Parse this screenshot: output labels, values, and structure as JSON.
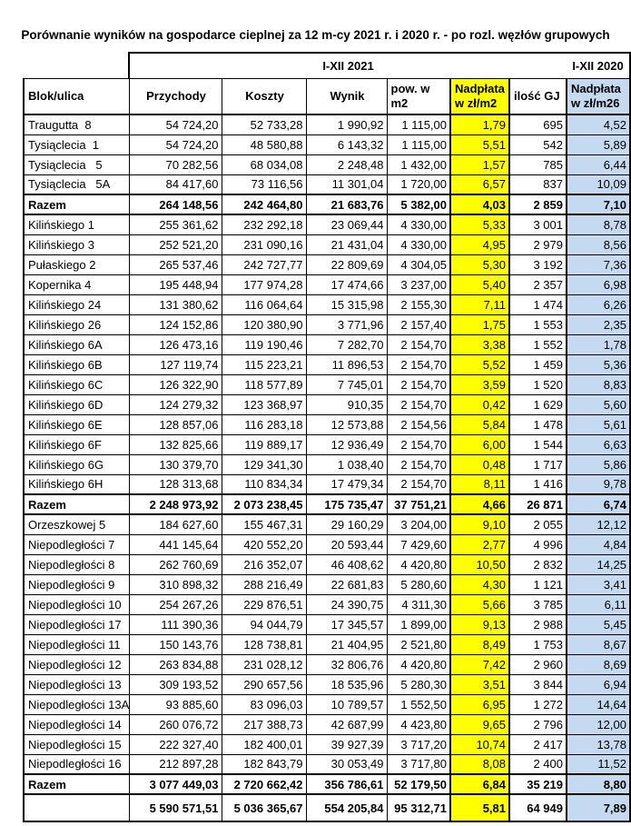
{
  "title": "Porównanie wyników na gospodarce cieplnej za 12 m-cy 2021 r. i 2020 r. - po rozl. węzłów grupowych",
  "table": {
    "period_2021_label": "I-XII 2021",
    "period_2020_label": "I-XII 2020",
    "columns": [
      "Blok/ulica",
      "Przychody",
      "Koszty",
      "Wynik",
      "pow. w m2",
      "Nadpłata w zł/m2",
      "ilość GJ",
      "Nadpłata w zł/m26"
    ],
    "colors": {
      "overpayment_2021_bg": "#FFFF00",
      "overpayment_2020_bg": "#C5D9F1"
    },
    "rows": [
      {
        "label": "Traugutta  8",
        "values": [
          "54 724,20",
          "52 733,28",
          "1 990,92",
          "1 115,00",
          "1,79",
          "695",
          "4,52"
        ],
        "bold": false
      },
      {
        "label": "Tysiąclecia  1",
        "values": [
          "54 724,20",
          "48 580,88",
          "6 143,32",
          "1 115,00",
          "5,51",
          "542",
          "5,89"
        ],
        "bold": false
      },
      {
        "label": "Tysiąclecia   5",
        "values": [
          "70 282,56",
          "68 034,08",
          "2 248,48",
          "1 432,00",
          "1,57",
          "785",
          "6,44"
        ],
        "bold": false
      },
      {
        "label": "Tysiąclecia   5A",
        "values": [
          "84 417,60",
          "73 116,56",
          "11 301,04",
          "1 720,00",
          "6,57",
          "837",
          "10,09"
        ],
        "bold": false
      },
      {
        "label": "Razem",
        "values": [
          "264 148,56",
          "242 464,80",
          "21 683,76",
          "5 382,00",
          "4,03",
          "2 859",
          "7,10"
        ],
        "bold": true
      },
      {
        "label": "Kilińskiego 1",
        "values": [
          "255 361,62",
          "232 292,18",
          "23 069,44",
          "4 330,00",
          "5,33",
          "3 001",
          "8,78"
        ],
        "bold": false
      },
      {
        "label": "Kilińskiego 3",
        "values": [
          "252 521,20",
          "231 090,16",
          "21 431,04",
          "4 330,00",
          "4,95",
          "2 979",
          "8,56"
        ],
        "bold": false
      },
      {
        "label": "Pułaskiego 2",
        "values": [
          "265 537,46",
          "242 727,77",
          "22 809,69",
          "4 304,05",
          "5,30",
          "3 192",
          "7,36"
        ],
        "bold": false
      },
      {
        "label": "Kopernika 4",
        "values": [
          "195 448,94",
          "177 974,28",
          "17 474,66",
          "3 237,00",
          "5,40",
          "2 357",
          "6,98"
        ],
        "bold": false
      },
      {
        "label": "Kilińskiego 24",
        "values": [
          "131 380,62",
          "116 064,64",
          "15 315,98",
          "2 155,30",
          "7,11",
          "1 474",
          "6,26"
        ],
        "bold": false
      },
      {
        "label": "Kilińskiego 26",
        "values": [
          "124 152,86",
          "120 380,90",
          "3 771,96",
          "2 157,40",
          "1,75",
          "1 553",
          "2,35"
        ],
        "bold": false
      },
      {
        "label": "Kilińskiego 6A",
        "values": [
          "126 473,16",
          "119 190,46",
          "7 282,70",
          "2 154,70",
          "3,38",
          "1 552",
          "1,78"
        ],
        "bold": false
      },
      {
        "label": "Kilińskiego 6B",
        "values": [
          "127 119,74",
          "115 223,21",
          "11 896,53",
          "2 154,70",
          "5,52",
          "1 459",
          "5,36"
        ],
        "bold": false
      },
      {
        "label": "Kilińskiego 6C",
        "values": [
          "126 322,90",
          "118 577,89",
          "7 745,01",
          "2 154,70",
          "3,59",
          "1 520",
          "8,83"
        ],
        "bold": false
      },
      {
        "label": "Kilińskiego 6D",
        "values": [
          "124 279,32",
          "123 368,97",
          "910,35",
          "2 154,70",
          "0,42",
          "1 629",
          "5,60"
        ],
        "bold": false
      },
      {
        "label": "Kilińskiego 6E",
        "values": [
          "128 857,06",
          "116 283,18",
          "12 573,88",
          "2 154,56",
          "5,84",
          "1 478",
          "5,61"
        ],
        "bold": false
      },
      {
        "label": "Kilińskiego 6F",
        "values": [
          "132 825,66",
          "119 889,17",
          "12 936,49",
          "2 154,70",
          "6,00",
          "1 544",
          "6,63"
        ],
        "bold": false
      },
      {
        "label": "Kilińskiego 6G",
        "values": [
          "130 379,70",
          "129 341,30",
          "1 038,40",
          "2 154,70",
          "0,48",
          "1 717",
          "5,86"
        ],
        "bold": false
      },
      {
        "label": "Kilińskiego 6H",
        "values": [
          "128 313,68",
          "110 834,34",
          "17 479,34",
          "2 154,70",
          "8,11",
          "1 416",
          "9,78"
        ],
        "bold": false
      },
      {
        "label": "Razem",
        "values": [
          "2 248 973,92",
          "2 073 238,45",
          "175 735,47",
          "37 751,21",
          "4,66",
          "26 871",
          "6,74"
        ],
        "bold": true
      },
      {
        "label": "Orzeszkowej 5",
        "values": [
          "184 627,60",
          "155 467,31",
          "29 160,29",
          "3 204,00",
          "9,10",
          "2 055",
          "12,12"
        ],
        "bold": false
      },
      {
        "label": "Niepodległości 7",
        "values": [
          "441 145,64",
          "420 552,20",
          "20 593,44",
          "7 429,60",
          "2,77",
          "4 996",
          "4,84"
        ],
        "bold": false
      },
      {
        "label": "Niepodległości 8",
        "values": [
          "262 760,69",
          "216 352,07",
          "46 408,62",
          "4 420,80",
          "10,50",
          "2 832",
          "14,25"
        ],
        "bold": false
      },
      {
        "label": "Niepodległości 9",
        "values": [
          "310 898,32",
          "288 216,49",
          "22 681,83",
          "5 280,60",
          "4,30",
          "1 121",
          "3,41"
        ],
        "bold": false
      },
      {
        "label": "Niepodległości 10",
        "values": [
          "254 267,26",
          "229 876,51",
          "24 390,75",
          "4 311,30",
          "5,66",
          "3 785",
          "6,11"
        ],
        "bold": false
      },
      {
        "label": "Niepodległości 17",
        "values": [
          "111 390,36",
          "94 044,79",
          "17 345,57",
          "1 899,00",
          "9,13",
          "2 988",
          "5,45"
        ],
        "bold": false
      },
      {
        "label": "Niepodległości 11",
        "values": [
          "150 143,76",
          "128 738,81",
          "21 404,95",
          "2 521,80",
          "8,49",
          "1 753",
          "8,67"
        ],
        "bold": false
      },
      {
        "label": "Niepodległości 12",
        "values": [
          "263 834,88",
          "231 028,12",
          "32 806,76",
          "4 420,80",
          "7,42",
          "2 960",
          "8,69"
        ],
        "bold": false
      },
      {
        "label": "Niepodległości 13",
        "values": [
          "309 193,52",
          "290 657,56",
          "18 535,96",
          "5 280,30",
          "3,51",
          "3 844",
          "6,94"
        ],
        "bold": false
      },
      {
        "label": "Niepodległości 13A",
        "values": [
          "93 885,60",
          "83 096,03",
          "10 789,57",
          "1 552,50",
          "6,95",
          "1 272",
          "14,64"
        ],
        "bold": false
      },
      {
        "label": "Niepodległości 14",
        "values": [
          "260 076,72",
          "217 388,73",
          "42 687,99",
          "4 423,80",
          "9,65",
          "2 796",
          "12,00"
        ],
        "bold": false
      },
      {
        "label": "Niepodległości 15",
        "values": [
          "222 327,40",
          "182 400,01",
          "39 927,39",
          "3 717,20",
          "10,74",
          "2 417",
          "13,78"
        ],
        "bold": false
      },
      {
        "label": "Niepodległości 16",
        "values": [
          "212 897,28",
          "182 843,79",
          "30 053,49",
          "3 717,80",
          "8,08",
          "2 400",
          "11,52"
        ],
        "bold": false
      },
      {
        "label": "Razem",
        "values": [
          "3 077 449,03",
          "2 720 662,42",
          "356 786,61",
          "52 179,50",
          "6,84",
          "35 219",
          "8,80"
        ],
        "bold": true
      },
      {
        "label": "",
        "values": [
          "5 590 571,51",
          "5 036 365,67",
          "554 205,84",
          "95 312,71",
          "5,81",
          "64 949",
          "7,89"
        ],
        "bold": true,
        "tall": true
      }
    ]
  }
}
